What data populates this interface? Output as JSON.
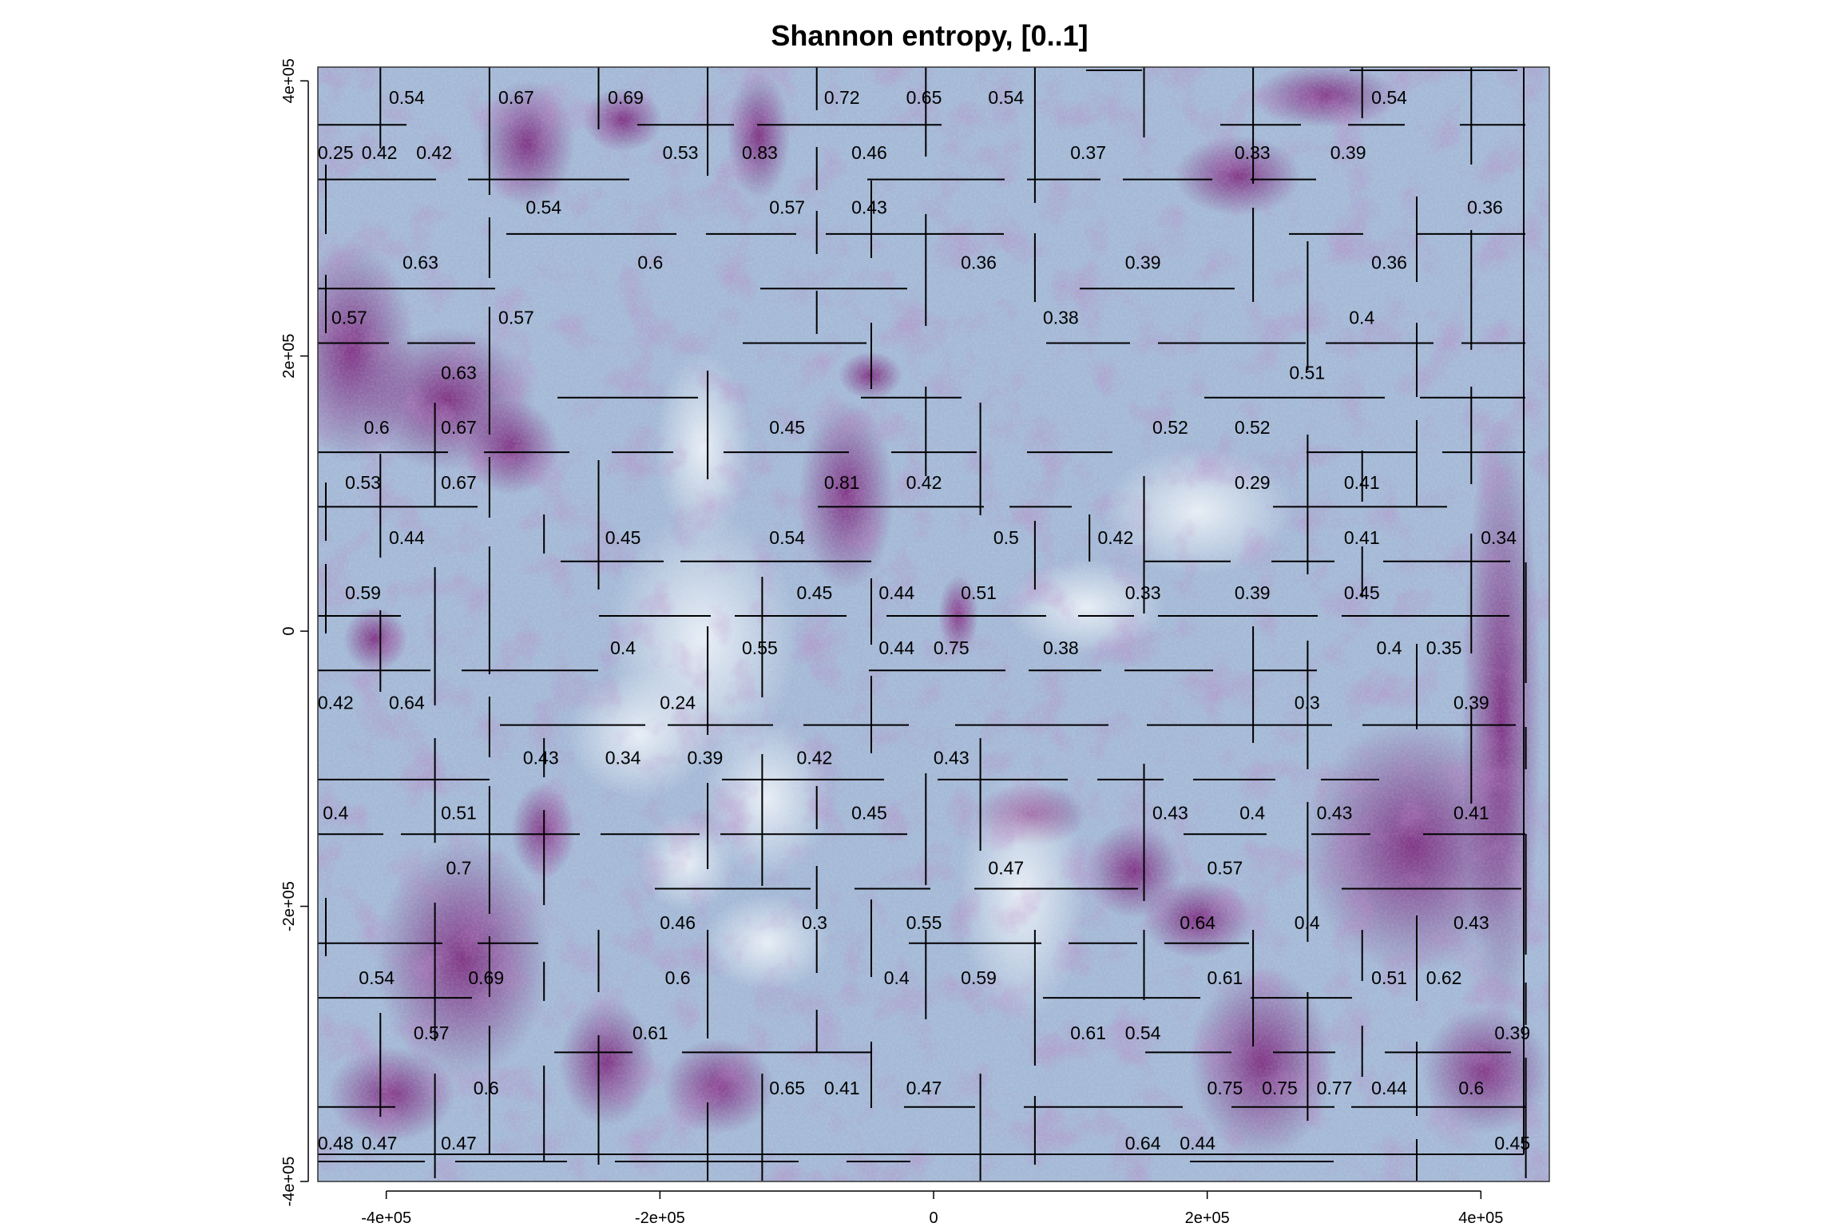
{
  "chart_data": {
    "type": "heatmap",
    "title": "Shannon entropy, [0..1]",
    "xlabel": "",
    "ylabel": "",
    "xlim": [
      -450000,
      450000
    ],
    "ylim": [
      -400000,
      410000
    ],
    "x_ticks": [
      {
        "value": -400000,
        "label": "-4e+05"
      },
      {
        "value": -200000,
        "label": "-2e+05"
      },
      {
        "value": 0,
        "label": "0"
      },
      {
        "value": 200000,
        "label": "2e+05"
      },
      {
        "value": 400000,
        "label": "4e+05"
      }
    ],
    "y_ticks": [
      {
        "value": 400000,
        "label": "4e+05"
      },
      {
        "value": 200000,
        "label": "2e+05"
      },
      {
        "value": 0,
        "label": "0"
      },
      {
        "value": -200000,
        "label": "-2e+05"
      },
      {
        "value": -400000,
        "label": "-4e+05"
      }
    ],
    "color_scale": {
      "low": "#e9f0f6",
      "mid": "#a3b8d6",
      "high": "#7d1c7c"
    },
    "grid": false,
    "legend": "none",
    "regions": [
      {
        "x": -385000,
        "y": 388000,
        "label": "0.54"
      },
      {
        "x": -305000,
        "y": 388000,
        "label": "0.67"
      },
      {
        "x": -225000,
        "y": 388000,
        "label": "0.69"
      },
      {
        "x": -67000,
        "y": 388000,
        "label": "0.72"
      },
      {
        "x": -7000,
        "y": 388000,
        "label": "0.65"
      },
      {
        "x": 53000,
        "y": 388000,
        "label": "0.54"
      },
      {
        "x": 333000,
        "y": 388000,
        "label": "0.54"
      },
      {
        "x": -437000,
        "y": 348000,
        "label": "0.25"
      },
      {
        "x": -405000,
        "y": 348000,
        "label": "0.42"
      },
      {
        "x": -365000,
        "y": 348000,
        "label": "0.42"
      },
      {
        "x": -185000,
        "y": 348000,
        "label": "0.53"
      },
      {
        "x": -127000,
        "y": 348000,
        "label": "0.83"
      },
      {
        "x": -47000,
        "y": 348000,
        "label": "0.46"
      },
      {
        "x": 113000,
        "y": 348000,
        "label": "0.37"
      },
      {
        "x": 233000,
        "y": 348000,
        "label": "0.33"
      },
      {
        "x": 303000,
        "y": 348000,
        "label": "0.39"
      },
      {
        "x": -285000,
        "y": 308000,
        "label": "0.54"
      },
      {
        "x": -107000,
        "y": 308000,
        "label": "0.57"
      },
      {
        "x": -47000,
        "y": 308000,
        "label": "0.43"
      },
      {
        "x": 403000,
        "y": 308000,
        "label": "0.36"
      },
      {
        "x": -375000,
        "y": 268000,
        "label": "0.63"
      },
      {
        "x": -207000,
        "y": 268000,
        "label": "0.6"
      },
      {
        "x": 33000,
        "y": 268000,
        "label": "0.36"
      },
      {
        "x": 153000,
        "y": 268000,
        "label": "0.39"
      },
      {
        "x": 333000,
        "y": 268000,
        "label": "0.36"
      },
      {
        "x": -427000,
        "y": 228000,
        "label": "0.57"
      },
      {
        "x": -305000,
        "y": 228000,
        "label": "0.57"
      },
      {
        "x": 93000,
        "y": 228000,
        "label": "0.38"
      },
      {
        "x": 313000,
        "y": 228000,
        "label": "0.4"
      },
      {
        "x": -347000,
        "y": 188000,
        "label": "0.63"
      },
      {
        "x": 273000,
        "y": 188000,
        "label": "0.51"
      },
      {
        "x": -407000,
        "y": 148000,
        "label": "0.6"
      },
      {
        "x": -347000,
        "y": 148000,
        "label": "0.67"
      },
      {
        "x": -107000,
        "y": 148000,
        "label": "0.45"
      },
      {
        "x": 173000,
        "y": 148000,
        "label": "0.52"
      },
      {
        "x": 233000,
        "y": 148000,
        "label": "0.52"
      },
      {
        "x": -417000,
        "y": 108000,
        "label": "0.53"
      },
      {
        "x": -347000,
        "y": 108000,
        "label": "0.67"
      },
      {
        "x": -67000,
        "y": 108000,
        "label": "0.81"
      },
      {
        "x": -7000,
        "y": 108000,
        "label": "0.42"
      },
      {
        "x": 233000,
        "y": 108000,
        "label": "0.29"
      },
      {
        "x": 313000,
        "y": 108000,
        "label": "0.41"
      },
      {
        "x": -385000,
        "y": 68000,
        "label": "0.44"
      },
      {
        "x": -227000,
        "y": 68000,
        "label": "0.45"
      },
      {
        "x": -107000,
        "y": 68000,
        "label": "0.54"
      },
      {
        "x": 53000,
        "y": 68000,
        "label": "0.5"
      },
      {
        "x": 133000,
        "y": 68000,
        "label": "0.42"
      },
      {
        "x": 313000,
        "y": 68000,
        "label": "0.41"
      },
      {
        "x": 413000,
        "y": 68000,
        "label": "0.34"
      },
      {
        "x": -417000,
        "y": 28000,
        "label": "0.59"
      },
      {
        "x": -87000,
        "y": 28000,
        "label": "0.45"
      },
      {
        "x": -27000,
        "y": 28000,
        "label": "0.44"
      },
      {
        "x": 33000,
        "y": 28000,
        "label": "0.51"
      },
      {
        "x": 153000,
        "y": 28000,
        "label": "0.33"
      },
      {
        "x": 233000,
        "y": 28000,
        "label": "0.39"
      },
      {
        "x": 313000,
        "y": 28000,
        "label": "0.45"
      },
      {
        "x": -227000,
        "y": -12000,
        "label": "0.4"
      },
      {
        "x": -127000,
        "y": -12000,
        "label": "0.55"
      },
      {
        "x": -27000,
        "y": -12000,
        "label": "0.44"
      },
      {
        "x": 13000,
        "y": -12000,
        "label": "0.75"
      },
      {
        "x": 93000,
        "y": -12000,
        "label": "0.38"
      },
      {
        "x": 333000,
        "y": -12000,
        "label": "0.4"
      },
      {
        "x": 373000,
        "y": -12000,
        "label": "0.35"
      },
      {
        "x": -437000,
        "y": -52000,
        "label": "0.42"
      },
      {
        "x": -385000,
        "y": -52000,
        "label": "0.64"
      },
      {
        "x": -187000,
        "y": -52000,
        "label": "0.24"
      },
      {
        "x": 273000,
        "y": -52000,
        "label": "0.3"
      },
      {
        "x": 393000,
        "y": -52000,
        "label": "0.39"
      },
      {
        "x": -287000,
        "y": -92000,
        "label": "0.43"
      },
      {
        "x": -227000,
        "y": -92000,
        "label": "0.34"
      },
      {
        "x": -167000,
        "y": -92000,
        "label": "0.39"
      },
      {
        "x": -87000,
        "y": -92000,
        "label": "0.42"
      },
      {
        "x": 13000,
        "y": -92000,
        "label": "0.43"
      },
      {
        "x": -437000,
        "y": -132000,
        "label": "0.4"
      },
      {
        "x": -347000,
        "y": -132000,
        "label": "0.51"
      },
      {
        "x": -47000,
        "y": -132000,
        "label": "0.45"
      },
      {
        "x": 173000,
        "y": -132000,
        "label": "0.43"
      },
      {
        "x": 233000,
        "y": -132000,
        "label": "0.4"
      },
      {
        "x": 293000,
        "y": -132000,
        "label": "0.43"
      },
      {
        "x": 393000,
        "y": -132000,
        "label": "0.41"
      },
      {
        "x": -347000,
        "y": -172000,
        "label": "0.7"
      },
      {
        "x": 53000,
        "y": -172000,
        "label": "0.47"
      },
      {
        "x": 213000,
        "y": -172000,
        "label": "0.57"
      },
      {
        "x": -187000,
        "y": -212000,
        "label": "0.46"
      },
      {
        "x": -87000,
        "y": -212000,
        "label": "0.3"
      },
      {
        "x": -7000,
        "y": -212000,
        "label": "0.55"
      },
      {
        "x": 193000,
        "y": -212000,
        "label": "0.64"
      },
      {
        "x": 273000,
        "y": -212000,
        "label": "0.4"
      },
      {
        "x": 393000,
        "y": -212000,
        "label": "0.43"
      },
      {
        "x": -407000,
        "y": -252000,
        "label": "0.54"
      },
      {
        "x": -327000,
        "y": -252000,
        "label": "0.69"
      },
      {
        "x": -187000,
        "y": -252000,
        "label": "0.6"
      },
      {
        "x": -27000,
        "y": -252000,
        "label": "0.4"
      },
      {
        "x": 33000,
        "y": -252000,
        "label": "0.59"
      },
      {
        "x": 213000,
        "y": -252000,
        "label": "0.61"
      },
      {
        "x": 333000,
        "y": -252000,
        "label": "0.51"
      },
      {
        "x": 373000,
        "y": -252000,
        "label": "0.62"
      },
      {
        "x": -367000,
        "y": -292000,
        "label": "0.57"
      },
      {
        "x": -207000,
        "y": -292000,
        "label": "0.61"
      },
      {
        "x": 113000,
        "y": -292000,
        "label": "0.61"
      },
      {
        "x": 153000,
        "y": -292000,
        "label": "0.54"
      },
      {
        "x": 423000,
        "y": -292000,
        "label": "0.39"
      },
      {
        "x": -327000,
        "y": -332000,
        "label": "0.6"
      },
      {
        "x": -107000,
        "y": -332000,
        "label": "0.65"
      },
      {
        "x": -67000,
        "y": -332000,
        "label": "0.41"
      },
      {
        "x": -7000,
        "y": -332000,
        "label": "0.47"
      },
      {
        "x": 213000,
        "y": -332000,
        "label": "0.75"
      },
      {
        "x": 253000,
        "y": -332000,
        "label": "0.75"
      },
      {
        "x": 293000,
        "y": -332000,
        "label": "0.77"
      },
      {
        "x": 333000,
        "y": -332000,
        "label": "0.44"
      },
      {
        "x": 393000,
        "y": -332000,
        "label": "0.6"
      },
      {
        "x": -437000,
        "y": -372000,
        "label": "0.48"
      },
      {
        "x": -405000,
        "y": -372000,
        "label": "0.47"
      },
      {
        "x": -347000,
        "y": -372000,
        "label": "0.47"
      },
      {
        "x": 153000,
        "y": -372000,
        "label": "0.64"
      },
      {
        "x": 193000,
        "y": -372000,
        "label": "0.44"
      },
      {
        "x": 423000,
        "y": -372000,
        "label": "0.45"
      }
    ]
  }
}
